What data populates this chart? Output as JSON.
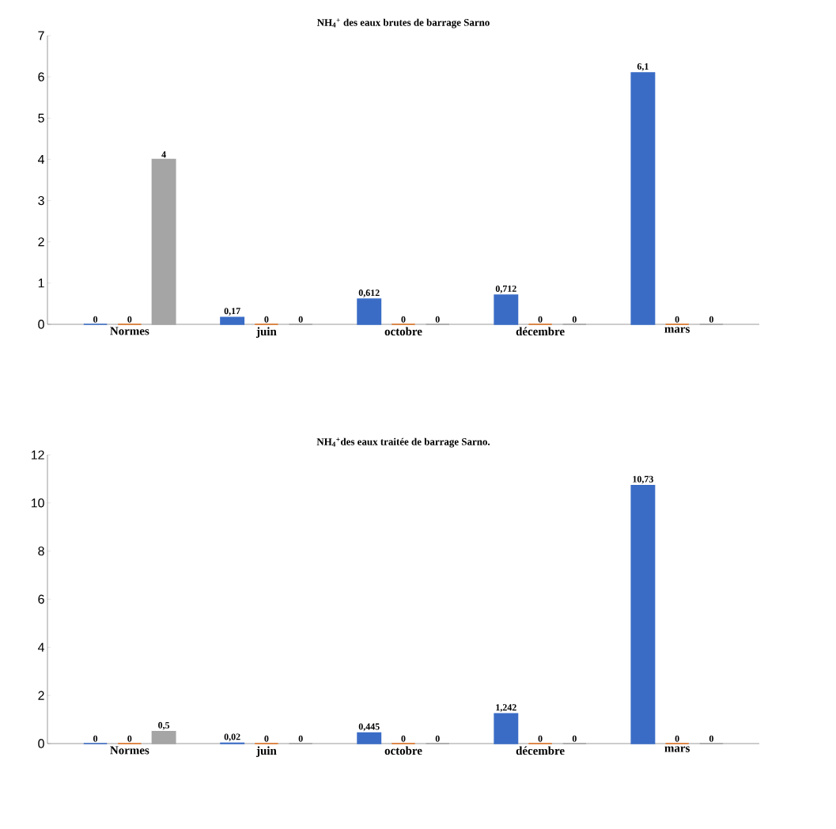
{
  "chart_data": [
    {
      "type": "bar",
      "title": "NH$_{4}$$^{+}$ des eaux brutes de barrage Sarno",
      "categories": [
        "Normes",
        "juin",
        "octobre",
        "décembre",
        "mars"
      ],
      "ylim": [
        0,
        7
      ],
      "yticks": [
        0,
        1,
        2,
        3,
        4,
        5,
        6,
        7
      ],
      "series": [
        {
          "color": "#3a6cc6",
          "values": [
            0,
            0.17,
            0.612,
            0.712,
            6.1
          ],
          "value_labels": [
            "0",
            "0,17",
            "0,612",
            "0,712",
            "6,1"
          ]
        },
        {
          "color": "#e0701e",
          "values": [
            0,
            0,
            0,
            0,
            0
          ],
          "value_labels": [
            "0",
            "0",
            "0",
            "0",
            "0"
          ]
        },
        {
          "color": "#a5a5a5",
          "values": [
            4,
            0,
            0,
            0,
            0
          ],
          "value_labels": [
            "4",
            "0",
            "0",
            "0",
            "0"
          ]
        }
      ]
    },
    {
      "type": "bar",
      "title": "NH$_{4}$$^{+}$des eaux traitée de barrage Sarno.",
      "categories": [
        "Normes",
        "juin",
        "octobre",
        "décembre",
        "mars"
      ],
      "ylim": [
        0,
        12
      ],
      "yticks": [
        0,
        2,
        4,
        6,
        8,
        10,
        12
      ],
      "series": [
        {
          "color": "#3a6cc6",
          "values": [
            0,
            0.02,
            0.445,
            1.242,
            10.73
          ],
          "value_labels": [
            "0",
            "0,02",
            "0,445",
            "1,242",
            "10,73"
          ]
        },
        {
          "color": "#e0701e",
          "values": [
            0,
            0,
            0,
            0,
            0
          ],
          "value_labels": [
            "0",
            "0",
            "0",
            "0",
            "0"
          ]
        },
        {
          "color": "#a5a5a5",
          "values": [
            0.5,
            0,
            0,
            0,
            0
          ],
          "value_labels": [
            "0,5",
            "0",
            "0",
            "0",
            "0"
          ]
        }
      ]
    }
  ]
}
